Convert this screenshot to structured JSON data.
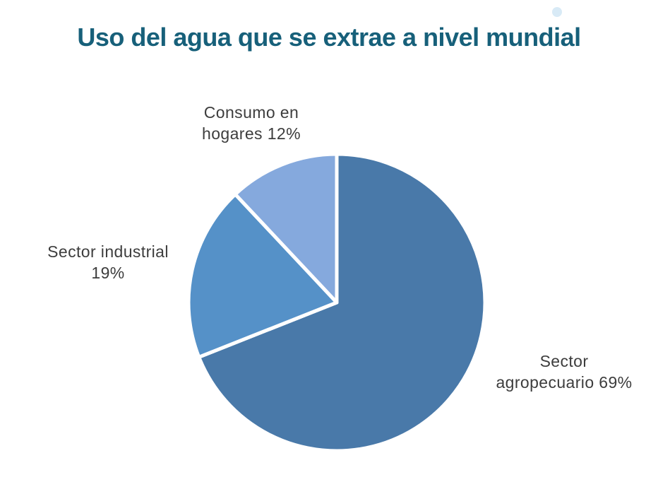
{
  "page": {
    "title": "Uso del agua que se extrae a nivel mundial"
  },
  "colors": {
    "background": "#ffffff",
    "title": "#17607a",
    "label_text": "#3d3d3d",
    "accent_dot": "#d8eaf6",
    "slice_border": "#ffffff"
  },
  "chart_data": {
    "type": "pie",
    "title": "Uso del agua que se extrae a nivel mundial",
    "unit": "%",
    "start_angle_deg": 0,
    "direction": "clockwise",
    "legend": "none",
    "label_style": "outside-text-labels",
    "segments": [
      {
        "id": "agropecuario",
        "label": "Sector agropecuario",
        "value": 69,
        "color": "#4979a9"
      },
      {
        "id": "industrial",
        "label": "Sector industrial",
        "value": 19,
        "color": "#5591c8"
      },
      {
        "id": "hogares",
        "label": "Consumo en hogares",
        "value": 12,
        "color": "#85a9dd"
      }
    ]
  },
  "labels": {
    "hogares": {
      "line1": "Consumo en",
      "line2": "hogares 12%"
    },
    "industrial": {
      "line1": "Sector industrial",
      "line2": "19%"
    },
    "agropecuario": {
      "line1": "Sector",
      "line2": "agropecuario 69%"
    }
  }
}
